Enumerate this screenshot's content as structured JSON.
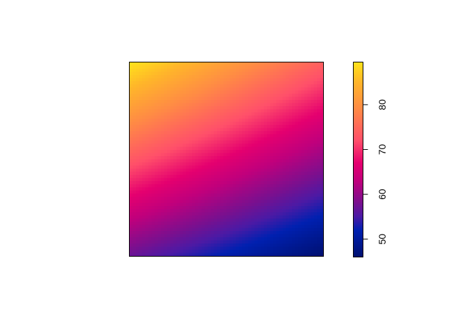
{
  "chart_data": {
    "type": "heatmap",
    "title": "",
    "xlabel": "",
    "ylabel": "",
    "axes_shown": false,
    "grid": false,
    "value_range": [
      46,
      89.5
    ],
    "corner_values": {
      "top_left": 89.5,
      "top_right": 74,
      "bottom_left": 57,
      "bottom_right": 46
    },
    "colorbar": {
      "position": "right",
      "ticks": [
        50,
        60,
        70,
        80
      ],
      "tick_labels": [
        "50",
        "60",
        "70",
        "80"
      ],
      "label_orientation": "rotated-90"
    },
    "colormap": [
      {
        "value": 46,
        "color": "#001070"
      },
      {
        "value": 52,
        "color": "#0020b0"
      },
      {
        "value": 55,
        "color": "#4a1aa5"
      },
      {
        "value": 58,
        "color": "#78108f"
      },
      {
        "value": 63,
        "color": "#c0007c"
      },
      {
        "value": 67,
        "color": "#e5006f"
      },
      {
        "value": 72,
        "color": "#ff4f6a"
      },
      {
        "value": 79,
        "color": "#ff8a45"
      },
      {
        "value": 85,
        "color": "#ffb52a"
      },
      {
        "value": 89.5,
        "color": "#ffe31a"
      }
    ]
  }
}
